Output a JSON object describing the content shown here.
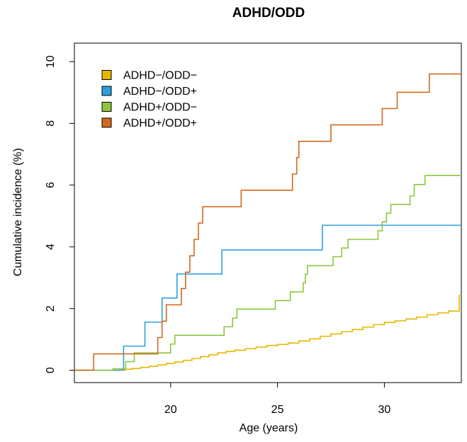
{
  "chart_data": {
    "type": "line",
    "step": true,
    "title": "ADHD/ODD",
    "xlabel": "Age (years)",
    "ylabel": "Cumulative incidence (%)",
    "xlim": [
      15.5,
      33.6
    ],
    "ylim": [
      -0.4,
      10.6
    ],
    "xticks": [
      20,
      25,
      30
    ],
    "yticks": [
      0,
      2,
      4,
      6,
      8,
      10
    ],
    "legend_position": "top-left",
    "series": [
      {
        "name": "ADHD−/ODD−",
        "color": "#E6B800",
        "x": [
          15.5,
          17.6,
          17.9,
          18.2,
          18.6,
          19.0,
          19.4,
          19.8,
          20.2,
          20.6,
          21.0,
          21.4,
          21.8,
          22.2,
          22.6,
          23.0,
          23.5,
          24.0,
          24.5,
          25.0,
          25.5,
          26.0,
          26.5,
          27.0,
          27.5,
          28.0,
          28.5,
          29.0,
          29.5,
          30.0,
          30.5,
          31.0,
          31.5,
          32.0,
          32.5,
          33.0,
          33.5,
          33.6
        ],
        "y": [
          0,
          0.01,
          0.03,
          0.06,
          0.09,
          0.13,
          0.17,
          0.22,
          0.27,
          0.32,
          0.38,
          0.44,
          0.5,
          0.56,
          0.61,
          0.65,
          0.7,
          0.75,
          0.8,
          0.84,
          0.88,
          0.95,
          1.02,
          1.1,
          1.18,
          1.25,
          1.32,
          1.4,
          1.48,
          1.55,
          1.6,
          1.66,
          1.72,
          1.8,
          1.86,
          1.92,
          2.42,
          2.42
        ]
      },
      {
        "name": "ADHD−/ODD+",
        "color": "#2B9FE0",
        "x": [
          15.5,
          17.8,
          18.8,
          19.6,
          20.0,
          20.3,
          22.4,
          27.1,
          33.6
        ],
        "y": [
          0,
          0.78,
          1.56,
          2.34,
          2.34,
          3.12,
          3.9,
          4.7,
          4.7
        ]
      },
      {
        "name": "ADHD+/ODD−",
        "color": "#8DC63F",
        "x": [
          15.5,
          17.3,
          17.9,
          18.3,
          19.6,
          20.0,
          20.2,
          22.5,
          22.9,
          23.1,
          24.9,
          25.6,
          26.2,
          26.3,
          26.4,
          27.6,
          28.0,
          28.3,
          29.7,
          29.9,
          30.1,
          30.3,
          30.5,
          31.2,
          31.4,
          31.9,
          33.6
        ],
        "y": [
          0,
          0.05,
          0.28,
          0.56,
          0.56,
          0.85,
          1.13,
          1.41,
          1.69,
          1.98,
          2.26,
          2.54,
          2.83,
          3.11,
          3.39,
          3.68,
          3.96,
          4.24,
          4.52,
          4.81,
          5.09,
          5.37,
          5.37,
          5.65,
          6.02,
          6.31,
          6.31
        ]
      },
      {
        "name": "ADHD+/ODD+",
        "color": "#D2691E",
        "x": [
          15.5,
          16.4,
          18.6,
          19.4,
          19.6,
          19.8,
          20.3,
          20.5,
          20.7,
          20.9,
          21.1,
          21.3,
          21.5,
          23.3,
          25.7,
          25.9,
          26.0,
          27.5,
          29.9,
          30.6,
          32.1,
          33.6
        ],
        "y": [
          0,
          0.53,
          0.53,
          1.06,
          1.59,
          2.12,
          2.12,
          2.65,
          3.18,
          3.71,
          4.24,
          4.77,
          5.3,
          5.83,
          6.36,
          6.89,
          7.42,
          7.95,
          8.48,
          9.01,
          9.6,
          9.6
        ]
      }
    ]
  }
}
